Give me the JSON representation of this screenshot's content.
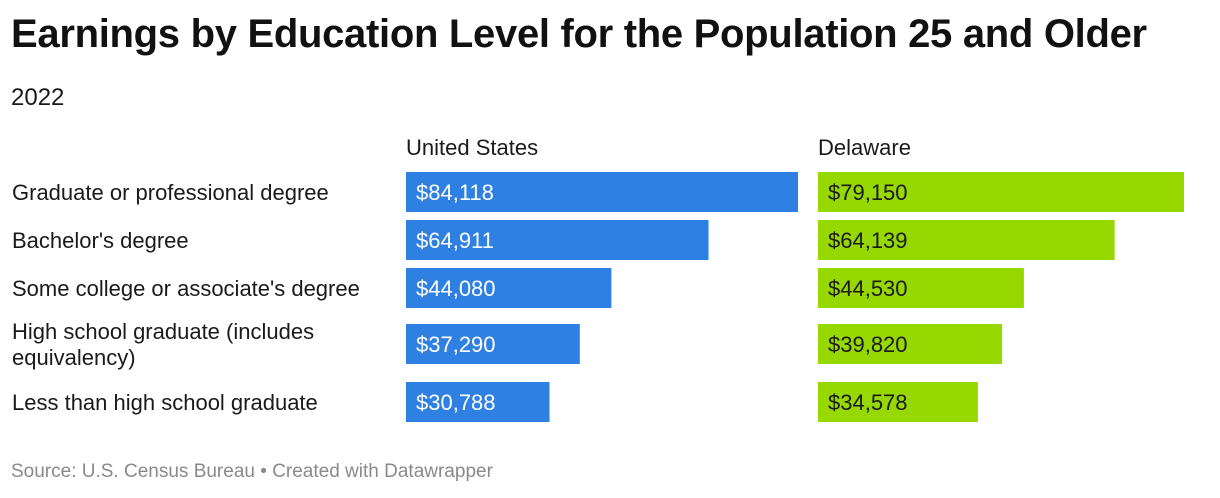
{
  "header": {
    "title": "Earnings by Education Level for the Population 25 and Older",
    "subtitle": "2022"
  },
  "footer": {
    "source": "Source: U.S. Census Bureau",
    "separator": "•",
    "credit": "Created with Datawrapper"
  },
  "chart_data": {
    "type": "bar",
    "title": "Earnings by Education Level for the Population 25 and Older",
    "subtitle": "2022",
    "categories": [
      [
        "Graduate or professional degree"
      ],
      [
        "Bachelor's degree"
      ],
      [
        "Some college or associate's degree"
      ],
      [
        "High school graduate (includes",
        "equivalency)"
      ],
      [
        "Less than high school graduate"
      ]
    ],
    "series": [
      {
        "name": "United States",
        "color": "#2f80e3",
        "label_color": "#ffffff",
        "values": [
          84118,
          64911,
          44080,
          37290,
          30788
        ],
        "labels": [
          "$84,118",
          "$64,911",
          "$44,080",
          "$37,290",
          "$30,788"
        ]
      },
      {
        "name": "Delaware",
        "color": "#97d800",
        "label_color": "#1a1a1a",
        "values": [
          79150,
          64139,
          44530,
          39820,
          34578
        ],
        "labels": [
          "$79,150",
          "$64,139",
          "$44,530",
          "$39,820",
          "$34,578"
        ]
      }
    ],
    "xlim": [
      0,
      84118
    ],
    "grid": false,
    "legend": "column-headers"
  }
}
